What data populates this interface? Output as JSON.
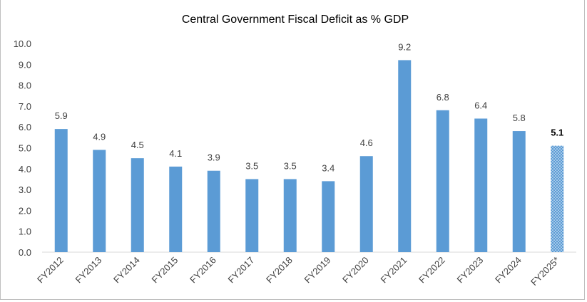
{
  "chart_data": {
    "type": "bar",
    "title": "Central Government Fiscal Deficit as % GDP",
    "xlabel": "",
    "ylabel": "",
    "ylim": [
      0,
      10
    ],
    "yticks": [
      "0.0",
      "1.0",
      "2.0",
      "3.0",
      "4.0",
      "5.0",
      "6.0",
      "7.0",
      "8.0",
      "9.0",
      "10.0"
    ],
    "grid": false,
    "legend": "none",
    "categories": [
      "FY2012",
      "FY2013",
      "FY2014",
      "FY2015",
      "FY2016",
      "FY2017",
      "FY2018",
      "FY2019",
      "FY2020",
      "FY2021",
      "FY2022",
      "FY2023",
      "FY2024",
      "FY2025*"
    ],
    "values": [
      5.9,
      4.9,
      4.5,
      4.1,
      3.9,
      3.5,
      3.5,
      3.4,
      4.6,
      9.2,
      6.8,
      6.4,
      5.8,
      5.1
    ],
    "value_labels": [
      "5.9",
      "4.9",
      "4.5",
      "4.1",
      "3.9",
      "3.5",
      "3.5",
      "3.4",
      "4.6",
      "9.2",
      "6.8",
      "6.4",
      "5.8",
      "5.1"
    ],
    "colors": {
      "bar": "#5b9bd5",
      "estimate_bar": "#9dc3e6",
      "axis": "#d9d9d9"
    },
    "estimate_index": 13
  }
}
